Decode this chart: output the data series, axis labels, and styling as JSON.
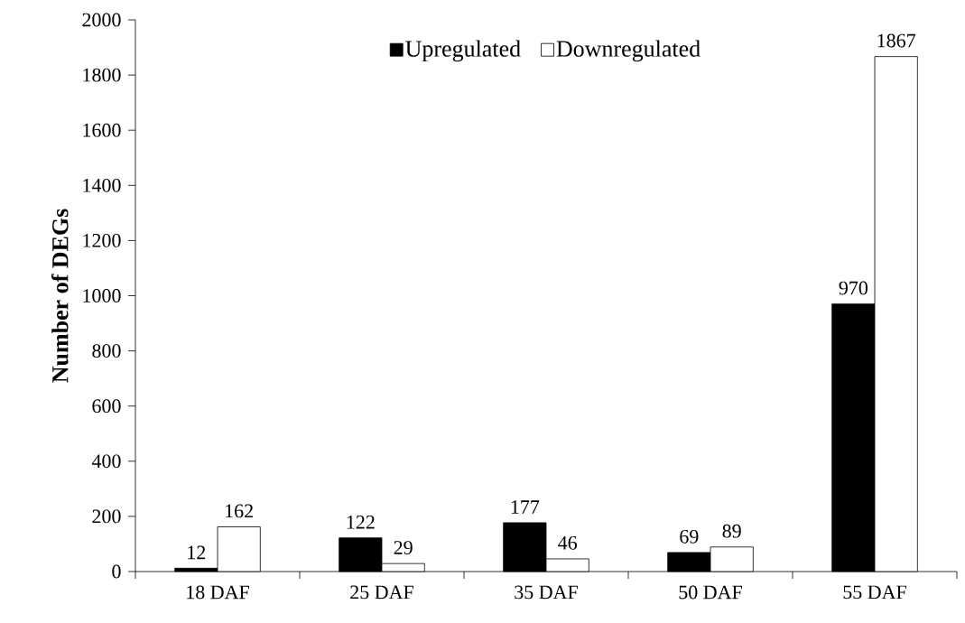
{
  "chart_data": {
    "type": "bar",
    "ylabel": "Number of DEGs",
    "categories": [
      "18 DAF",
      "25 DAF",
      "35 DAF",
      "50 DAF",
      "55 DAF"
    ],
    "series": [
      {
        "name": "Upregulated",
        "color": "#000000",
        "values": [
          12,
          122,
          177,
          69,
          970
        ]
      },
      {
        "name": "Downregulated",
        "color": "#ffffff",
        "values": [
          162,
          29,
          46,
          89,
          1867
        ]
      }
    ],
    "ylim": [
      0,
      2000
    ],
    "yticks": [
      0,
      200,
      400,
      600,
      800,
      1000,
      1200,
      1400,
      1600,
      1800,
      2000
    ],
    "data_labels": true,
    "legend": "top",
    "grid": false
  }
}
